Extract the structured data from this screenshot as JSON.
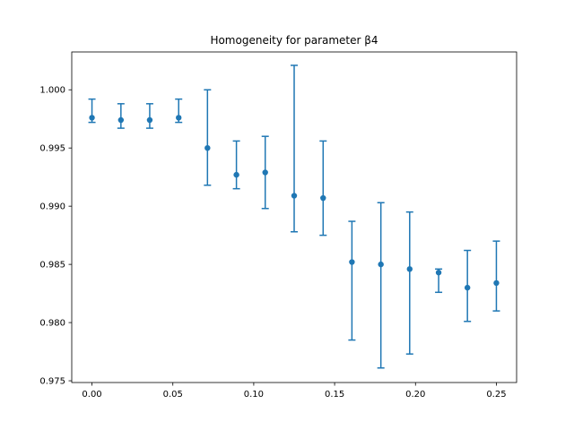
{
  "chart_data": {
    "type": "scatter",
    "title": "Homogeneity for parameter β4",
    "xlabel": "",
    "ylabel": "",
    "xlim": [
      -0.0125,
      0.2625
    ],
    "ylim": [
      0.97485,
      1.00325
    ],
    "xticks": [
      0.0,
      0.05,
      0.1,
      0.15,
      0.2,
      0.25
    ],
    "xtick_labels": [
      "0.00",
      "0.05",
      "0.10",
      "0.15",
      "0.20",
      "0.25"
    ],
    "yticks": [
      0.975,
      0.98,
      0.985,
      0.99,
      0.995,
      1.0
    ],
    "ytick_labels": [
      "0.975",
      "0.980",
      "0.985",
      "0.990",
      "0.995",
      "1.000"
    ],
    "grid": false,
    "legend": "none",
    "series": [
      {
        "color": "#1f77b4",
        "x": [
          0.0,
          0.0179,
          0.0357,
          0.0536,
          0.0714,
          0.0893,
          0.1071,
          0.125,
          0.1429,
          0.1607,
          0.1786,
          0.1964,
          0.2143,
          0.2321,
          0.25
        ],
        "y": [
          0.9976,
          0.9974,
          0.9974,
          0.9976,
          0.995,
          0.9927,
          0.9929,
          0.9909,
          0.9907,
          0.9852,
          0.985,
          0.9846,
          0.9843,
          0.983,
          0.9834
        ],
        "err_low": [
          0.9972,
          0.9967,
          0.9967,
          0.9972,
          0.9918,
          0.9915,
          0.9898,
          0.9878,
          0.9875,
          0.9785,
          0.9761,
          0.9773,
          0.9826,
          0.9801,
          0.981
        ],
        "err_high": [
          0.9992,
          0.9988,
          0.9988,
          0.9992,
          1.0,
          0.9956,
          0.996,
          1.0021,
          0.9956,
          0.9887,
          0.9903,
          0.9895,
          0.9846,
          0.9862,
          0.987
        ]
      }
    ]
  }
}
